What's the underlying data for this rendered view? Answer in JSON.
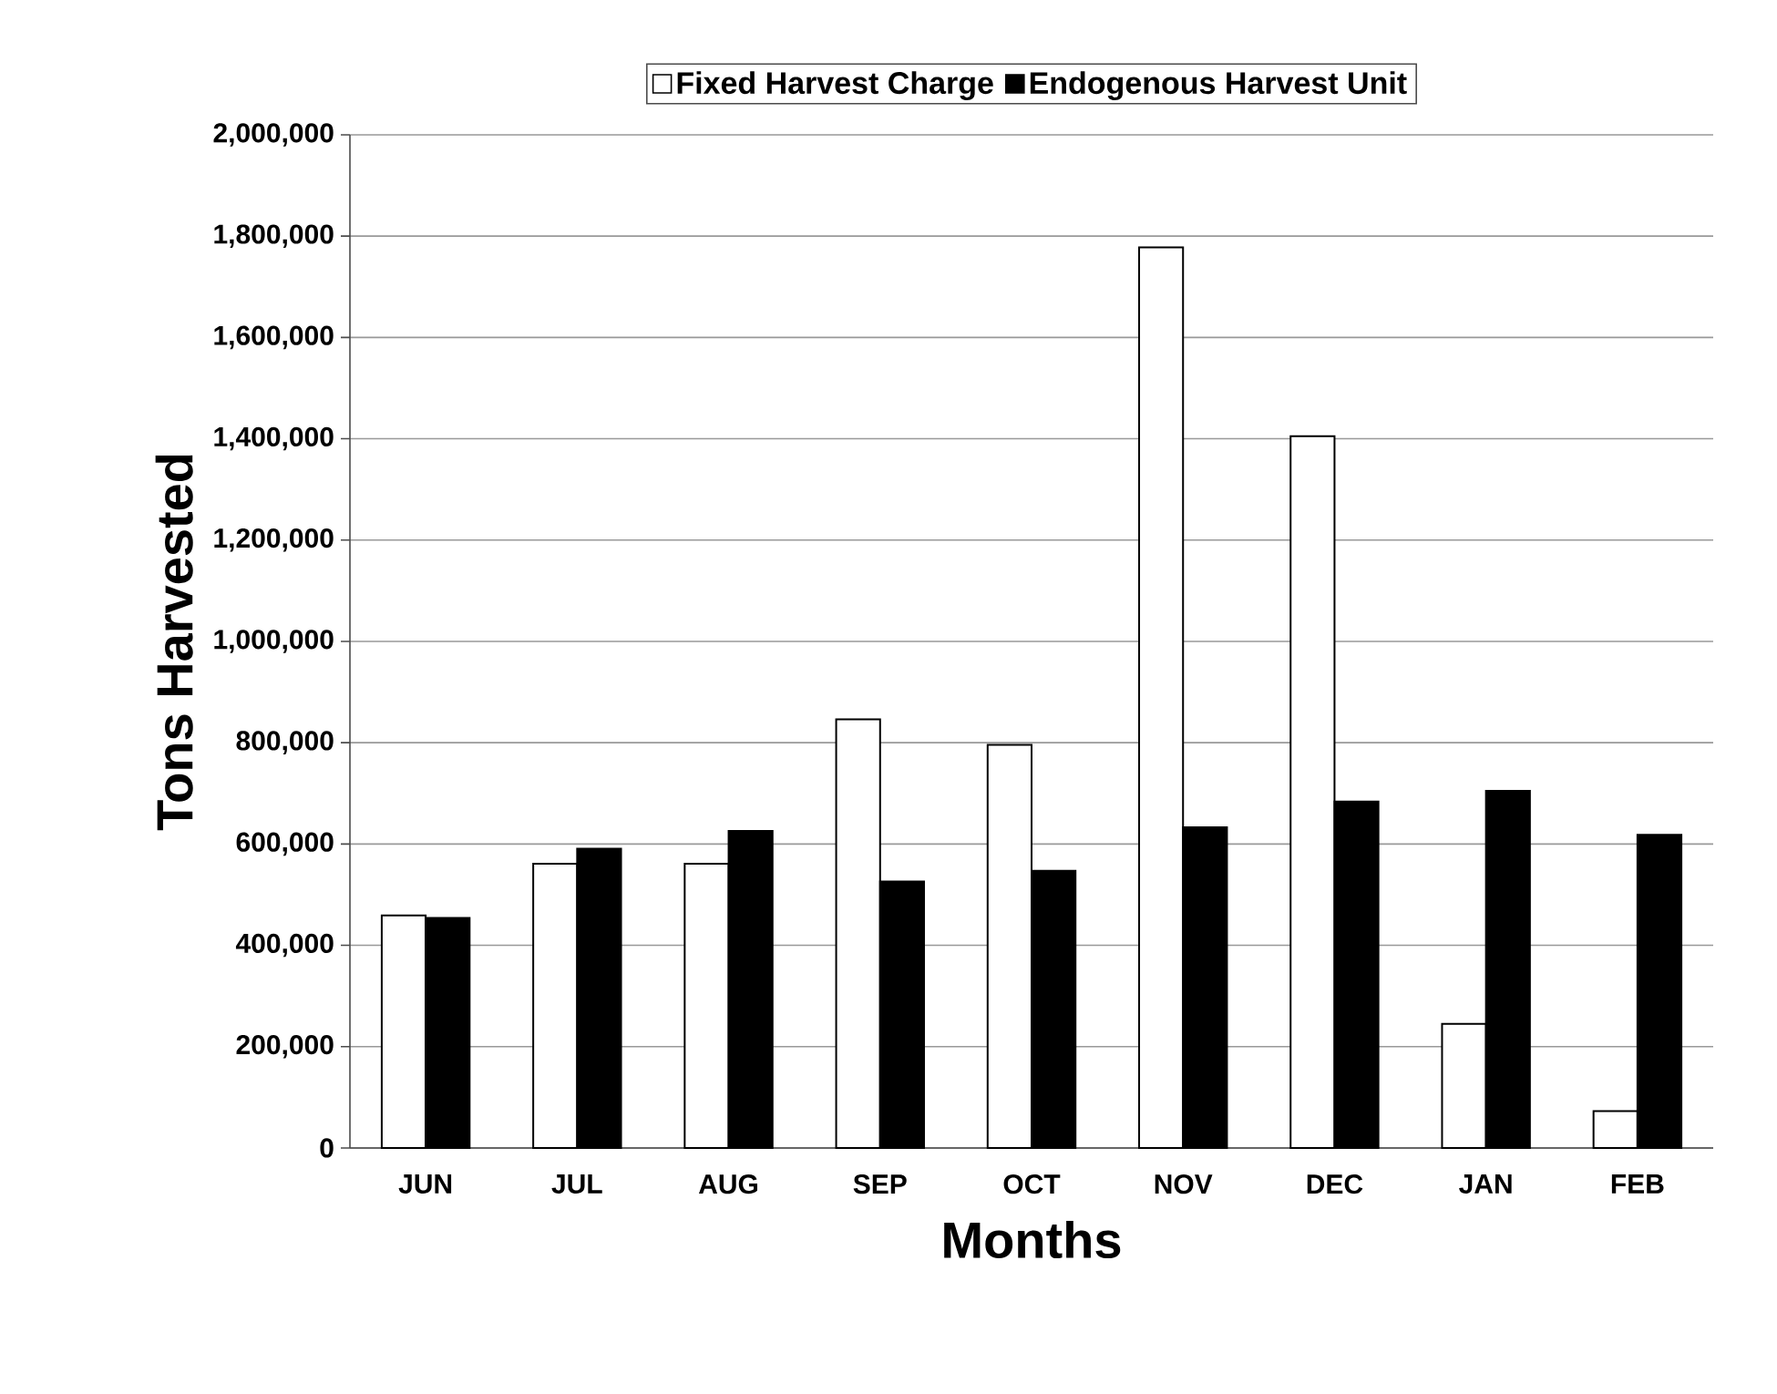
{
  "chart_data": {
    "type": "bar",
    "xlabel": "Months",
    "ylabel": "Tons Harvested",
    "categories": [
      "JUN",
      "JUL",
      "AUG",
      "SEP",
      "OCT",
      "NOV",
      "DEC",
      "JAN",
      "FEB"
    ],
    "series": [
      {
        "name": "Fixed Harvest Charge",
        "color": "#ffffff",
        "values": [
          459000,
          561000,
          561000,
          846000,
          796000,
          1778000,
          1405000,
          245000,
          73000
        ]
      },
      {
        "name": "Endogenous Harvest Unit",
        "color": "#000000",
        "values": [
          454000,
          591000,
          626000,
          526000,
          547000,
          633000,
          684000,
          705000,
          618000
        ]
      }
    ],
    "ylim": [
      0,
      2000000
    ],
    "yticks": [
      {
        "value": 0,
        "label": "0"
      },
      {
        "value": 200000,
        "label": "200,000"
      },
      {
        "value": 400000,
        "label": "400,000"
      },
      {
        "value": 600000,
        "label": "600,000"
      },
      {
        "value": 800000,
        "label": "800,000"
      },
      {
        "value": 1000000,
        "label": "1,000,000"
      },
      {
        "value": 1200000,
        "label": "1,200,000"
      },
      {
        "value": 1400000,
        "label": "1,400,000"
      },
      {
        "value": 1600000,
        "label": "1,600,000"
      },
      {
        "value": 1800000,
        "label": "1,800,000"
      },
      {
        "value": 2000000,
        "label": "2,000,000"
      }
    ],
    "grid": "y",
    "legend": "top"
  }
}
